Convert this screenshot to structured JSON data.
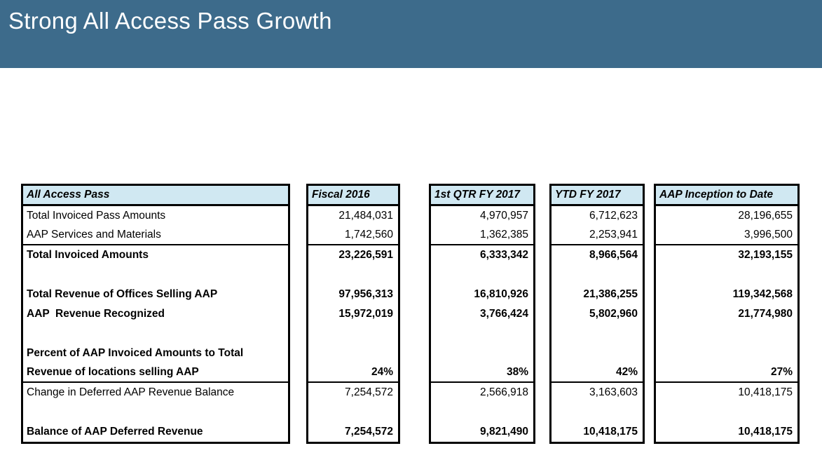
{
  "slide": {
    "title": "Strong All Access Pass Growth"
  },
  "colors": {
    "title_bar_bg": "#3d6b8b",
    "title_text": "#ffffff",
    "table_header_bg": "#d0e8f2",
    "table_border": "#000000"
  },
  "table": {
    "row_label_header": "All Access Pass",
    "value_column_headers": [
      "Fiscal 2016",
      "1st QTR FY 2017",
      "YTD FY 2017",
      "AAP Inception to Date"
    ],
    "rows": [
      {
        "label": "Total Invoiced Pass Amounts",
        "bold": false,
        "rule_below": false,
        "values": [
          "21,484,031",
          "4,970,957",
          "6,712,623",
          "28,196,655"
        ]
      },
      {
        "label": "AAP Services and Materials",
        "bold": false,
        "rule_below": true,
        "values": [
          "1,742,560",
          "1,362,385",
          "2,253,941",
          "3,996,500"
        ]
      },
      {
        "label": "Total Invoiced Amounts",
        "bold": true,
        "rule_below": false,
        "values": [
          "23,226,591",
          "6,333,342",
          "8,966,564",
          "32,193,155"
        ]
      },
      {
        "label": "",
        "bold": false,
        "rule_below": false,
        "values": [
          "",
          "",
          "",
          ""
        ]
      },
      {
        "label": "Total Revenue of Offices Selling AAP",
        "bold": true,
        "rule_below": false,
        "values": [
          "97,956,313",
          "16,810,926",
          "21,386,255",
          "119,342,568"
        ]
      },
      {
        "label": "AAP  Revenue Recognized",
        "bold": true,
        "rule_below": false,
        "values": [
          "15,972,019",
          "3,766,424",
          "5,802,960",
          "21,774,980"
        ]
      },
      {
        "label": "",
        "bold": false,
        "rule_below": false,
        "values": [
          "",
          "",
          "",
          ""
        ]
      },
      {
        "label": "Percent of AAP Invoiced Amounts to Total",
        "bold": true,
        "rule_below": false,
        "values": [
          "",
          "",
          "",
          ""
        ]
      },
      {
        "label": "Revenue of locations selling AAP",
        "bold": true,
        "rule_below": true,
        "values": [
          "24%",
          "38%",
          "42%",
          "27%"
        ]
      },
      {
        "label": "Change in Deferred AAP Revenue Balance",
        "bold": false,
        "rule_below": false,
        "values": [
          "7,254,572",
          "2,566,918",
          "3,163,603",
          "10,418,175"
        ]
      },
      {
        "label": "",
        "bold": false,
        "rule_below": false,
        "values": [
          "",
          "",
          "",
          ""
        ]
      },
      {
        "label": "Balance of AAP Deferred Revenue",
        "bold": true,
        "rule_below": false,
        "values": [
          "7,254,572",
          "9,821,490",
          "10,418,175",
          "10,418,175"
        ]
      }
    ]
  }
}
